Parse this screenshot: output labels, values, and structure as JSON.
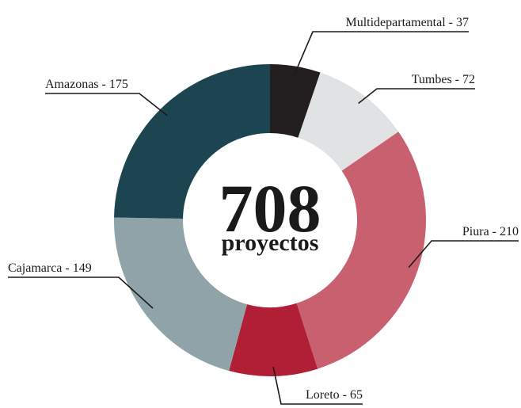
{
  "chart_data": {
    "type": "donut",
    "categories": [
      "Multidepartamental - 37",
      "Tumbes - 72",
      "Piura - 210",
      "Loreto - 65",
      "Cajamarca - 149",
      "Amazonas - 175"
    ],
    "values": [
      37,
      72,
      210,
      65,
      149,
      175
    ],
    "colors": [
      "#231f20",
      "#e0e2e4",
      "#c96070",
      "#b01f36",
      "#8fa3a8",
      "#1d4451"
    ],
    "center_label": "708",
    "center_sublabel": "proyectos"
  }
}
